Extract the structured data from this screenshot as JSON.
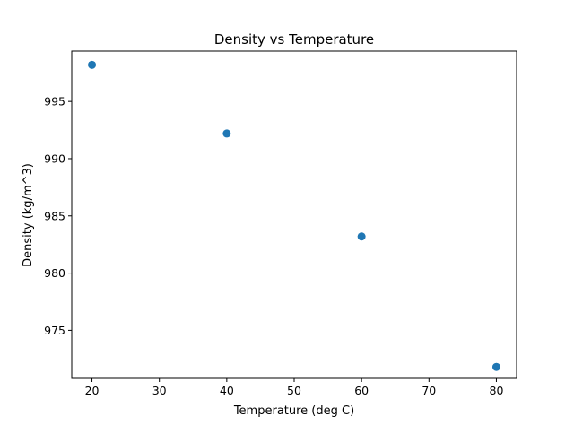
{
  "chart_data": {
    "type": "scatter",
    "title": "Density vs Temperature",
    "xlabel": "Temperature (deg C)",
    "ylabel": "Density (kg/m^3)",
    "xlim": [
      17,
      83
    ],
    "ylim": [
      970.8,
      999.4
    ],
    "xticks": [
      20,
      30,
      40,
      50,
      60,
      70,
      80
    ],
    "yticks": [
      975,
      980,
      985,
      990,
      995
    ],
    "grid": false,
    "series": [
      {
        "x": [
          20,
          40,
          60,
          80
        ],
        "y": [
          998.2,
          992.2,
          983.2,
          971.8
        ]
      }
    ],
    "marker_color": "#1f77b4"
  }
}
